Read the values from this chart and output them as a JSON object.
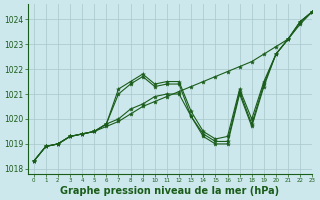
{
  "background_color": "#cde8ec",
  "grid_color": "#a8c8cc",
  "line_color": "#1a5c1a",
  "marker_color": "#1a5c1a",
  "xlabel": "Graphe pression niveau de la mer (hPa)",
  "xlabel_fontsize": 7,
  "xlim": [
    -0.5,
    23
  ],
  "ylim": [
    1017.8,
    1024.6
  ],
  "yticks": [
    1018,
    1019,
    1020,
    1021,
    1022,
    1023,
    1024
  ],
  "xticks": [
    0,
    1,
    2,
    3,
    4,
    5,
    6,
    7,
    8,
    9,
    10,
    11,
    12,
    13,
    14,
    15,
    16,
    17,
    18,
    19,
    20,
    21,
    22,
    23
  ],
  "series": [
    [
      1018.3,
      1018.9,
      1019.0,
      1019.3,
      1019.4,
      1019.5,
      1019.7,
      1019.9,
      1020.2,
      1020.5,
      1020.7,
      1020.9,
      1021.1,
      1021.3,
      1021.5,
      1021.7,
      1021.9,
      1022.1,
      1022.3,
      1022.6,
      1022.9,
      1023.2,
      1023.8,
      1024.3
    ],
    [
      1018.3,
      1018.9,
      1019.0,
      1019.3,
      1019.4,
      1019.5,
      1019.8,
      1021.2,
      1021.5,
      1021.8,
      1021.4,
      1021.5,
      1021.5,
      1020.3,
      1019.5,
      1019.2,
      1019.3,
      1021.2,
      1020.0,
      1021.5,
      1022.6,
      1023.2,
      1023.9,
      1024.3
    ],
    [
      1018.3,
      1018.9,
      1019.0,
      1019.3,
      1019.4,
      1019.5,
      1019.8,
      1021.0,
      1021.4,
      1021.7,
      1021.3,
      1021.4,
      1021.4,
      1020.1,
      1019.4,
      1019.1,
      1019.1,
      1021.1,
      1019.8,
      1021.4,
      1022.6,
      1023.2,
      1023.9,
      1024.3
    ],
    [
      1018.3,
      1018.9,
      1019.0,
      1019.3,
      1019.4,
      1019.5,
      1019.8,
      1020.0,
      1020.4,
      1020.6,
      1020.9,
      1021.0,
      1021.0,
      1020.1,
      1019.3,
      1019.0,
      1019.0,
      1021.0,
      1019.7,
      1021.3,
      1022.6,
      1023.2,
      1023.9,
      1024.3
    ]
  ]
}
